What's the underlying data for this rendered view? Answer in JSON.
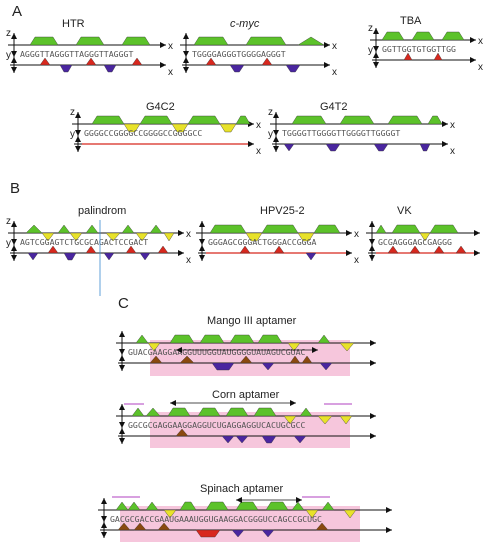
{
  "panels": [
    {
      "label": "A"
    },
    {
      "label": "B"
    },
    {
      "label": "C"
    }
  ],
  "diagrams": [
    {
      "title": "HTR",
      "italic": false,
      "sequence": "AGGGTTAGGGTTAGGGTTAGGGT",
      "z_label": "z",
      "y_label": "y",
      "x_label": "x",
      "x2_label": "x"
    },
    {
      "title": "c-myc",
      "italic": true,
      "sequence": "TGGGGAGGGTGGGGAGGGT",
      "x_label": "x",
      "x2_label": "x"
    },
    {
      "title": "TBA",
      "italic": false,
      "sequence": "GGTTGGTGTGGTTGG",
      "z_label": "z",
      "y_label": "y",
      "x_label": "x",
      "x2_label": "x"
    },
    {
      "title": "G4C2",
      "italic": false,
      "sequence": "GGGGCCGGGGCCGGGGCCGGGGCC",
      "z_label": "z",
      "y_label": "y",
      "x_label": "x",
      "x2_label": "x"
    },
    {
      "title": "G4T2",
      "italic": false,
      "sequence": "TGGGGTTGGGGTTGGGGTTGGGGT",
      "z_label": "z",
      "y_label": "y",
      "x_label": "x",
      "x2_label": "x"
    },
    {
      "title": "palindrom",
      "italic": false,
      "sequence": "AGTCGGAGTCTGCGCAGACTCCGACT",
      "z_label": "z",
      "y_label": "y",
      "x_label": "x",
      "x2_label": "x"
    },
    {
      "title": "HPV25-2",
      "italic": false,
      "sequence": "GGGAGCGGGACTGGGACCGGGA",
      "x_label": "x",
      "x2_label": "x"
    },
    {
      "title": "VK",
      "italic": false,
      "sequence": "GCGAGGGAGCGAGGG"
    },
    {
      "title": "Mango III aptamer",
      "italic": false,
      "sequence": "GUACGAAGGAAGGUUUGGUAUGGGGUAUAGUCGUAC"
    },
    {
      "title": "Corn aptamer",
      "italic": false,
      "sequence": "GGCGCGAGGAAGGAGGUCUGAGGAGGUCACUGCGCC"
    },
    {
      "title": "Spinach aptamer",
      "italic": false,
      "sequence": "GACGCGACCGAAUGAAAUGGUGAAGGACGGGUCCAGCCGCUGC"
    }
  ],
  "colors": {
    "green": "#5cc22a",
    "yellow": "#e8e22a",
    "red": "#d8281e",
    "blue": "#4a26a0",
    "brown": "#8a4a10",
    "pink": "#f6c6dc",
    "axis": "#111111",
    "arrow": "#b040c0"
  }
}
